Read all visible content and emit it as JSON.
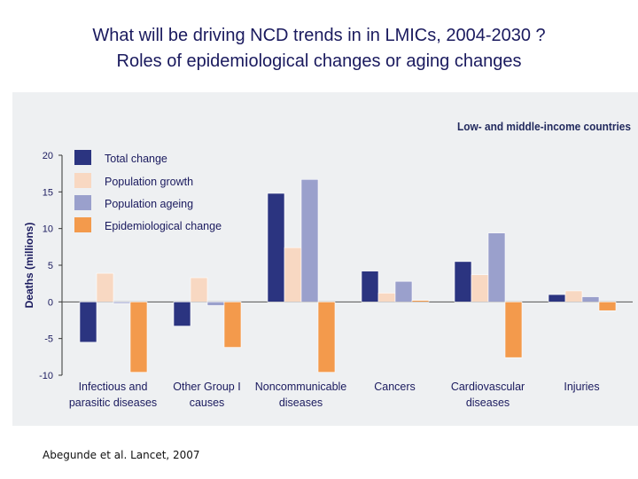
{
  "slide": {
    "title_line1": "What will be driving NCD trends in in LMICs, 2004-2030 ?",
    "title_line2": "Roles of epidemiological changes or aging changes",
    "citation": "Abegunde et al. Lancet, 2007"
  },
  "chart_data": {
    "type": "bar",
    "title": "Low- and middle-income countries",
    "xlabel": "",
    "ylabel": "Deaths (millions)",
    "ylim": [
      -10,
      20
    ],
    "yticks": [
      20,
      15,
      10,
      5,
      0,
      -5,
      -10
    ],
    "ytick_labels": [
      "20",
      "15",
      "10",
      "5",
      "0",
      "-5",
      "-10"
    ],
    "grid": false,
    "legend_position": "top-left",
    "categories": [
      [
        "Infectious and",
        "parasitic diseases"
      ],
      [
        "Other Group I",
        "causes"
      ],
      [
        "Noncommunicable",
        "diseases"
      ],
      [
        "Cancers"
      ],
      [
        "Cardiovascular",
        "diseases"
      ],
      [
        "Injuries"
      ]
    ],
    "series": [
      {
        "name": "Total change",
        "color": "#2b3480",
        "values": [
          -5.5,
          -3.3,
          14.8,
          4.2,
          5.5,
          1.0
        ]
      },
      {
        "name": "Population growth",
        "color": "#f8d8c2",
        "values": [
          3.9,
          3.3,
          7.4,
          1.2,
          3.7,
          1.5
        ]
      },
      {
        "name": "Population ageing",
        "color": "#9aa0cc",
        "values": [
          -0.2,
          -0.5,
          16.7,
          2.8,
          9.4,
          0.7
        ]
      },
      {
        "name": "Epidemiological change",
        "color": "#f39a4c",
        "values": [
          -9.6,
          -6.2,
          -9.6,
          0.2,
          -7.6,
          -1.2
        ]
      }
    ]
  }
}
